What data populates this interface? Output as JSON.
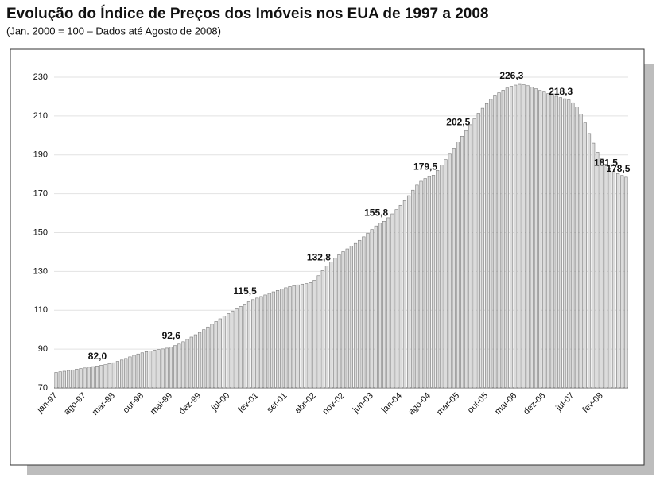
{
  "chart_data": {
    "type": "bar",
    "title": "Evolução do Índice de Preços dos Imóveis nos EUA de 1997 a 2008",
    "subtitle": "(Jan. 2000 = 100 – Dados até Agosto de 2008)",
    "categories": [
      "jan-97",
      null,
      null,
      null,
      null,
      null,
      null,
      "ago-97",
      null,
      null,
      null,
      null,
      null,
      null,
      "mar-98",
      null,
      null,
      null,
      null,
      null,
      null,
      "out-98",
      null,
      null,
      null,
      null,
      null,
      null,
      "mai-99",
      null,
      null,
      null,
      null,
      null,
      null,
      "dez-99",
      null,
      null,
      null,
      null,
      null,
      null,
      "jul-00",
      null,
      null,
      null,
      null,
      null,
      null,
      "fev-01",
      null,
      null,
      null,
      null,
      null,
      null,
      "set-01",
      null,
      null,
      null,
      null,
      null,
      null,
      "abr-02",
      null,
      null,
      null,
      null,
      null,
      null,
      "nov-02",
      null,
      null,
      null,
      null,
      null,
      null,
      "jun-03",
      null,
      null,
      null,
      null,
      null,
      null,
      "jan-04",
      null,
      null,
      null,
      null,
      null,
      null,
      "ago-04",
      null,
      null,
      null,
      null,
      null,
      null,
      "mar-05",
      null,
      null,
      null,
      null,
      null,
      null,
      "out-05",
      null,
      null,
      null,
      null,
      null,
      null,
      "mai-06",
      null,
      null,
      null,
      null,
      null,
      null,
      "dez-06",
      null,
      null,
      null,
      null,
      null,
      null,
      "jul-07",
      null,
      null,
      null,
      null,
      null,
      null,
      "fev-08",
      null,
      null,
      null,
      null,
      null,
      null
    ],
    "values": [
      78.0,
      78.3,
      78.6,
      79.0,
      79.3,
      79.7,
      80.0,
      80.3,
      80.7,
      81.0,
      81.3,
      81.7,
      82.0,
      82.5,
      83.0,
      83.7,
      84.4,
      85.2,
      86.0,
      86.8,
      87.5,
      88.1,
      88.7,
      89.1,
      89.5,
      89.8,
      90.1,
      90.5,
      91.1,
      91.8,
      92.6,
      93.8,
      95.0,
      96.2,
      97.4,
      98.6,
      100.0,
      101.4,
      102.8,
      104.2,
      105.6,
      107.0,
      108.3,
      109.6,
      110.8,
      112.0,
      113.2,
      114.4,
      115.5,
      116.3,
      117.1,
      117.9,
      118.7,
      119.5,
      120.2,
      120.9,
      121.6,
      122.2,
      122.7,
      123.1,
      123.5,
      123.8,
      124.3,
      125.5,
      127.8,
      130.4,
      132.8,
      134.8,
      136.8,
      138.6,
      140.2,
      141.6,
      143.0,
      144.4,
      146.0,
      147.8,
      149.7,
      151.6,
      153.4,
      154.8,
      155.8,
      157.6,
      159.6,
      161.8,
      164.0,
      166.4,
      169.0,
      171.8,
      174.4,
      176.4,
      177.8,
      178.8,
      179.5,
      182.0,
      184.8,
      187.6,
      190.4,
      193.4,
      196.6,
      199.6,
      202.5,
      205.5,
      208.5,
      211.4,
      214.0,
      216.4,
      218.6,
      220.4,
      222.0,
      223.3,
      224.4,
      225.3,
      225.9,
      226.3,
      226.1,
      225.6,
      224.8,
      224.0,
      223.2,
      222.4,
      221.6,
      220.9,
      220.2,
      219.5,
      218.9,
      218.3,
      216.8,
      214.6,
      211.0,
      206.4,
      201.0,
      196.0,
      191.4,
      188.0,
      185.2,
      183.2,
      181.5,
      180.4,
      179.4,
      178.5
    ],
    "value_labels": [
      null,
      null,
      null,
      null,
      null,
      null,
      null,
      null,
      null,
      null,
      null,
      null,
      "82,0",
      null,
      null,
      null,
      null,
      null,
      null,
      null,
      null,
      null,
      null,
      null,
      null,
      null,
      null,
      null,
      null,
      null,
      "92,6",
      null,
      null,
      null,
      null,
      null,
      null,
      null,
      null,
      null,
      null,
      null,
      null,
      null,
      null,
      null,
      null,
      null,
      "115,5",
      null,
      null,
      null,
      null,
      null,
      null,
      null,
      null,
      null,
      null,
      null,
      null,
      null,
      null,
      null,
      null,
      null,
      "132,8",
      null,
      null,
      null,
      null,
      null,
      null,
      null,
      null,
      null,
      null,
      null,
      null,
      null,
      "155,8",
      null,
      null,
      null,
      null,
      null,
      null,
      null,
      null,
      null,
      null,
      null,
      "179,5",
      null,
      null,
      null,
      null,
      null,
      null,
      null,
      "202,5",
      null,
      null,
      null,
      null,
      null,
      null,
      null,
      null,
      null,
      null,
      null,
      null,
      "226,3",
      null,
      null,
      null,
      null,
      null,
      null,
      null,
      null,
      null,
      null,
      null,
      "218,3",
      null,
      null,
      null,
      null,
      null,
      null,
      null,
      null,
      null,
      null,
      "181,5",
      null,
      null,
      "178,5"
    ],
    "color": "#dcdcdc",
    "ylim": [
      70,
      230
    ],
    "yticks": [
      70,
      90,
      110,
      130,
      150,
      170,
      190,
      210,
      230
    ],
    "grid": true
  }
}
